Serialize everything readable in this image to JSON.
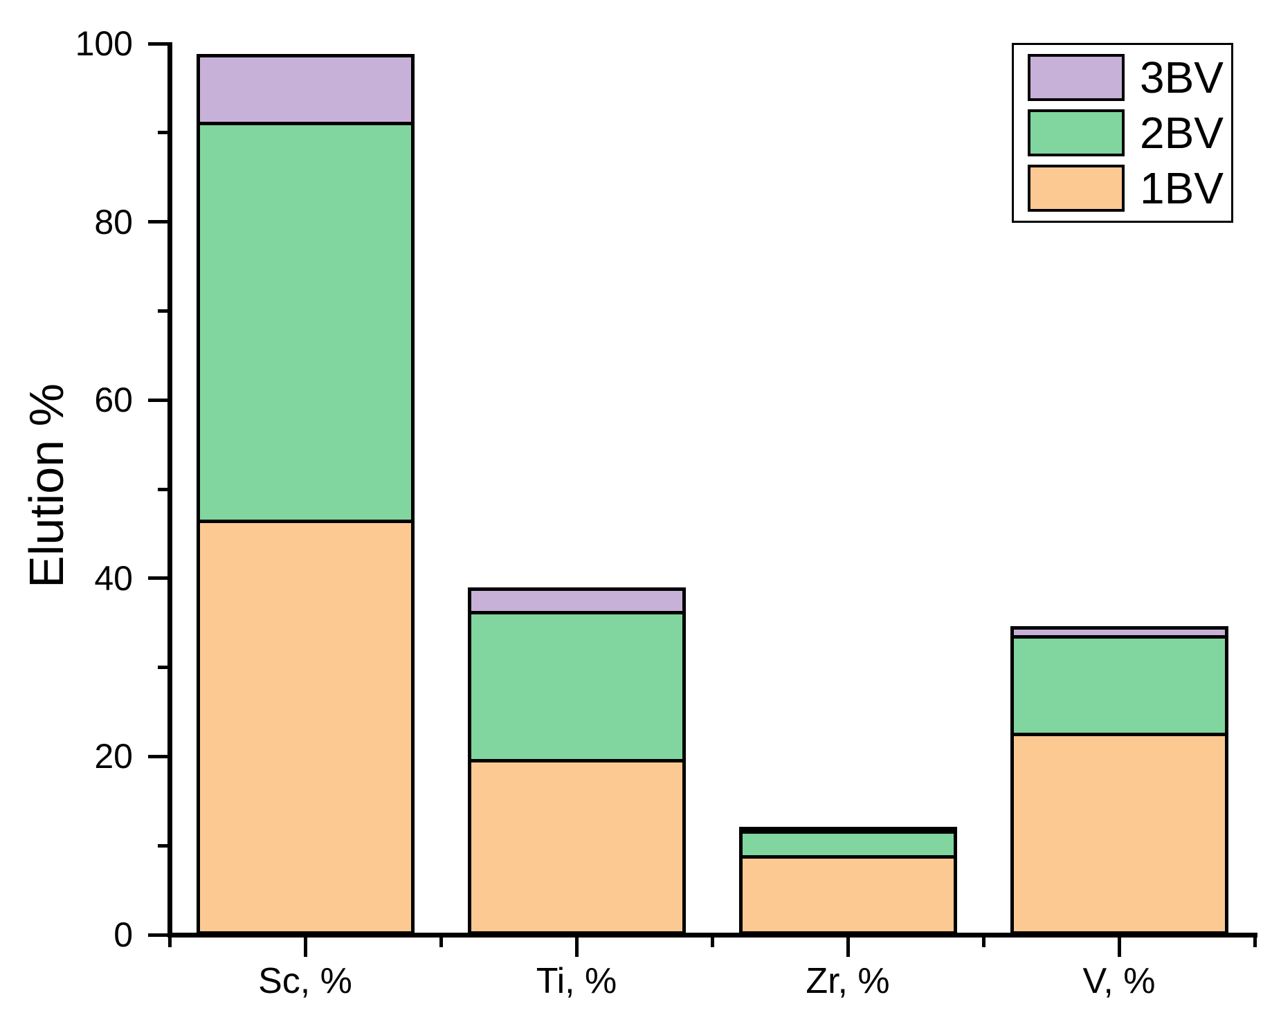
{
  "chart_data": {
    "type": "bar",
    "stacked": true,
    "title": "",
    "xlabel": "",
    "ylabel": "Elution %",
    "categories": [
      "Sc, %",
      "Ti, %",
      "Zr, %",
      "V, %"
    ],
    "category_keys": [
      "sc",
      "ti",
      "zr",
      "v"
    ],
    "series": [
      {
        "name": "1BV",
        "color": "#fdc992",
        "values": [
          46.6,
          19.7,
          8.9,
          22.7
        ]
      },
      {
        "name": "2BV",
        "color": "#80d69e",
        "values": [
          44.6,
          16.6,
          2.9,
          10.9
        ]
      },
      {
        "name": "3BV",
        "color": "#c8b1d8",
        "values": [
          7.6,
          2.7,
          0.3,
          1.0
        ]
      }
    ],
    "stack_totals": [
      98.8,
      39.0,
      12.1,
      34.6
    ],
    "ylim": [
      0,
      100
    ],
    "yticks_major": [
      0,
      20,
      40,
      60,
      80,
      100
    ],
    "ytick_labels": [
      "0",
      "20",
      "40",
      "60",
      "80",
      "100"
    ],
    "yticks_minor": [
      10,
      30,
      50,
      70,
      90
    ],
    "grid": false,
    "bar_border_color": "#000000",
    "axis_color": "#000000",
    "legend_position": "top-right",
    "legend": [
      {
        "label": "3BV"
      },
      {
        "label": "2BV"
      },
      {
        "label": "1BV"
      }
    ]
  }
}
